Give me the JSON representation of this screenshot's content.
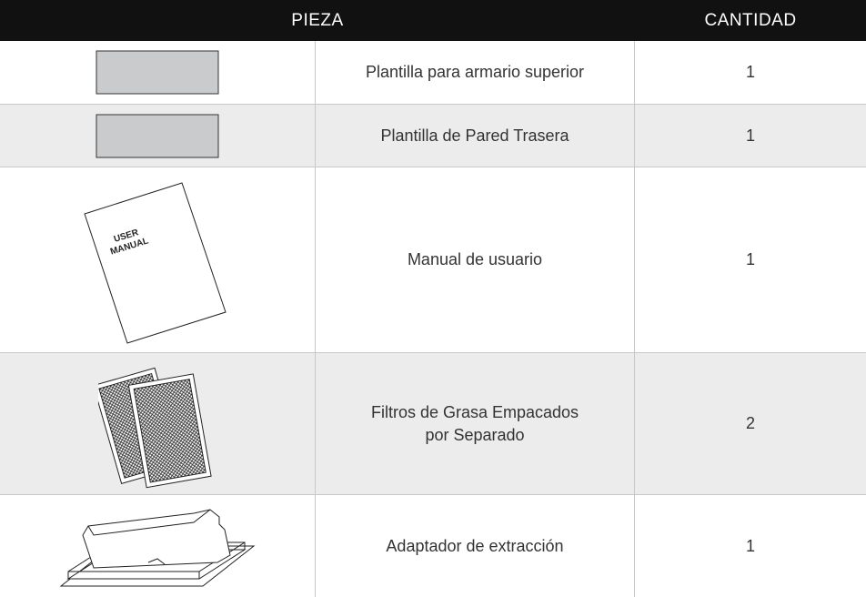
{
  "header": {
    "columns": [
      "PIEZA",
      "CANTIDAD"
    ]
  },
  "table": {
    "rows": [
      {
        "name": "Plantilla para armario superior",
        "quantity": 1
      },
      {
        "name": "Plantilla de Pared Trasera",
        "quantity": 1
      },
      {
        "name": "Manual de usuario",
        "quantity": 1,
        "image_text": [
          "USER",
          "MANUAL"
        ]
      },
      {
        "name": "Filtros de Grasa Empacados por Separado",
        "quantity": 2
      },
      {
        "name": "Adaptador de extracción",
        "quantity": 1
      }
    ]
  }
}
